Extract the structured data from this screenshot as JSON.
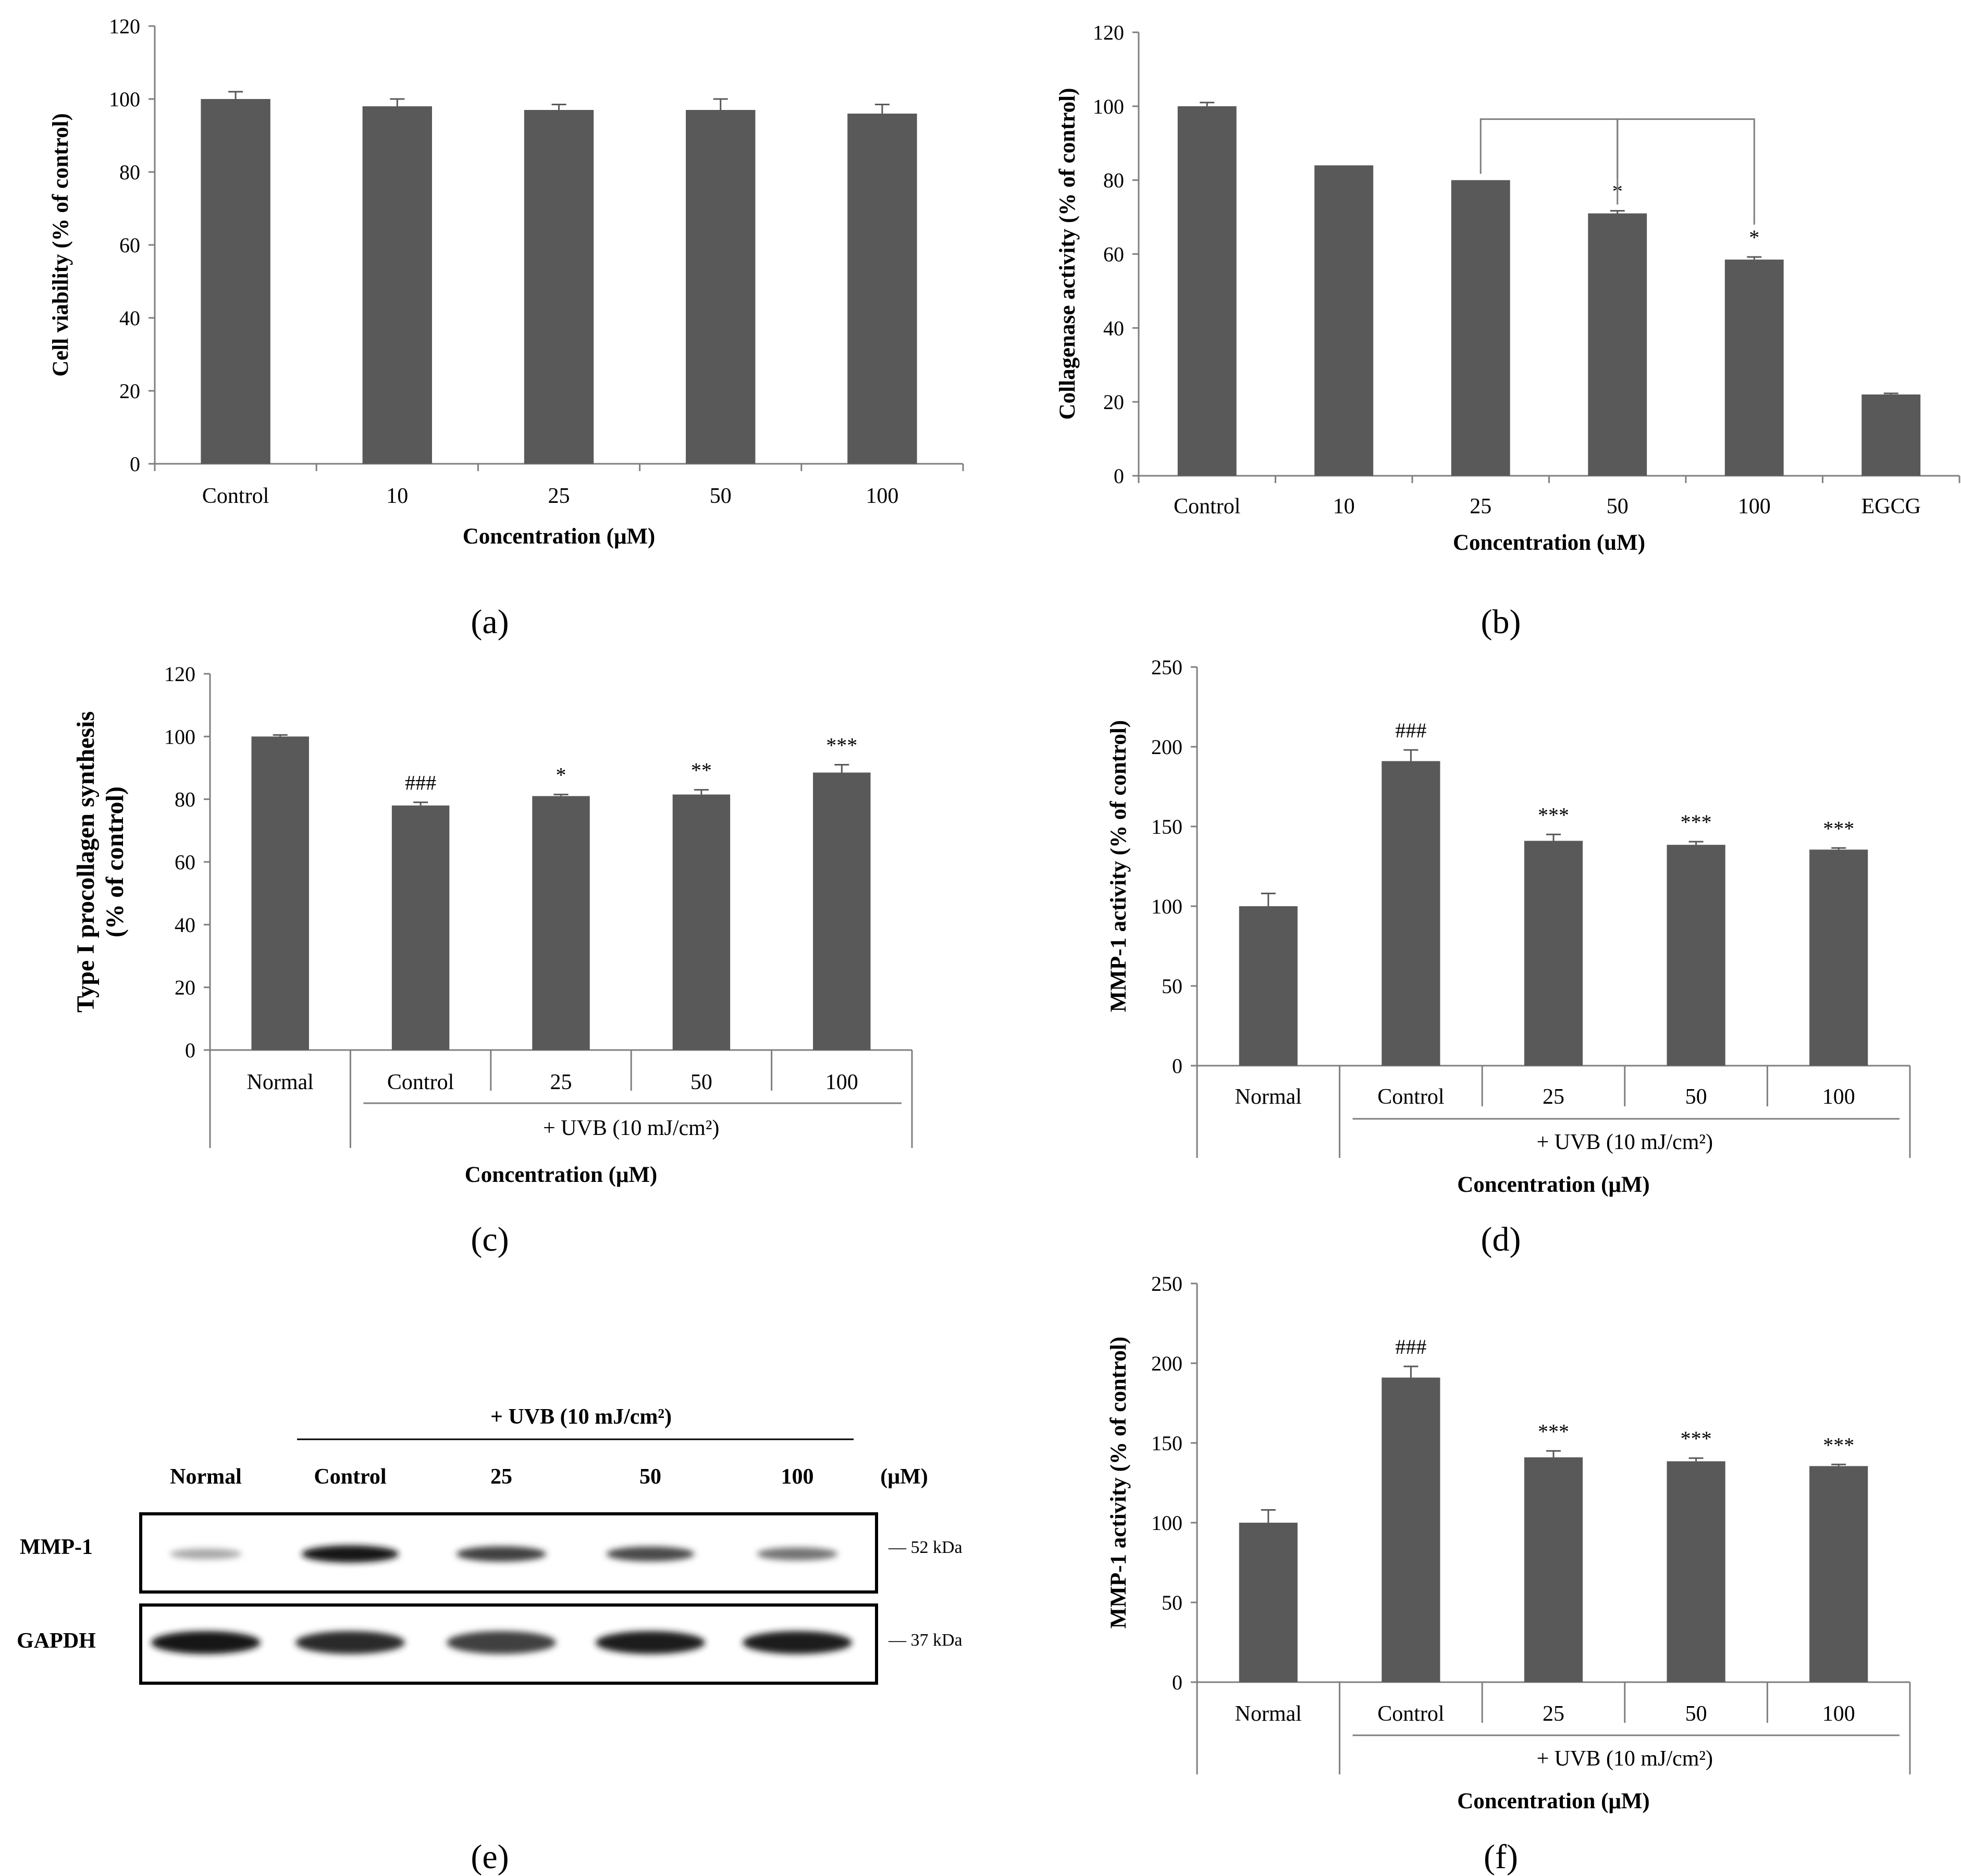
{
  "colors": {
    "bar": "#595959",
    "axis": "#7f7f7f",
    "text": "#000000"
  },
  "panels": {
    "a": {
      "label": "(a)"
    },
    "b": {
      "label": "(b)"
    },
    "c": {
      "label": "(c)"
    },
    "d": {
      "label": "(d)"
    },
    "e": {
      "label": "(e)"
    },
    "f": {
      "label": "(f)"
    }
  },
  "chart_data": [
    {
      "id": "a",
      "type": "bar",
      "categories": [
        "Control",
        "10",
        "25",
        "50",
        "100"
      ],
      "values": [
        100,
        98,
        97,
        97,
        96
      ],
      "errors": [
        2,
        2,
        1.5,
        3,
        2.5
      ],
      "significance": [
        "",
        "",
        "",
        "",
        ""
      ],
      "ylabel": "Cell viability (% of control)",
      "xlabel": "Concentration (μM)",
      "ylim": [
        0,
        120
      ],
      "yticks": [
        0,
        20,
        40,
        60,
        80,
        100,
        120
      ],
      "grid": false
    },
    {
      "id": "b",
      "type": "bar",
      "categories": [
        "Control",
        "10",
        "25",
        "50",
        "100",
        "EGCG"
      ],
      "values": [
        100,
        84,
        80,
        71,
        58.5,
        22
      ],
      "errors": [
        1,
        0,
        0,
        0.7,
        0.7,
        0.3
      ],
      "significance": [
        "",
        "",
        "",
        "*",
        "*",
        ""
      ],
      "ylabel": "Collagenase activity (% of control)",
      "xlabel": "Concentration (uM)",
      "ylim": [
        0,
        120
      ],
      "yticks": [
        0,
        20,
        40,
        60,
        80,
        100,
        120
      ],
      "grid": false,
      "brackets": [
        {
          "from": "25",
          "to": "50"
        },
        {
          "from": "50",
          "to": "100"
        }
      ]
    },
    {
      "id": "c",
      "type": "bar",
      "categories": [
        "Normal",
        "Control",
        "25",
        "50",
        "100"
      ],
      "values": [
        100,
        78,
        81,
        81.5,
        88.5
      ],
      "errors": [
        0.5,
        1,
        0.5,
        1.5,
        2.5
      ],
      "significance": [
        "",
        "###",
        "*",
        "**",
        "***"
      ],
      "ylabel_line1": "Type I procollagen synthesis",
      "ylabel_line2": "(% of control)",
      "group_label": "+ UVB (10 mJ/cm²)",
      "xlabel": "Concentration (μM)",
      "ylim": [
        0,
        120
      ],
      "yticks": [
        0,
        20,
        40,
        60,
        80,
        100,
        120
      ],
      "grid": false
    },
    {
      "id": "d",
      "type": "bar",
      "categories": [
        "Normal",
        "Control",
        "25",
        "50",
        "100"
      ],
      "values": [
        100,
        191,
        141,
        138.5,
        135.5
      ],
      "errors": [
        8,
        7,
        4,
        2,
        1
      ],
      "significance": [
        "",
        "###",
        "***",
        "***",
        "***"
      ],
      "ylabel": "MMP-1 activity (% of control)",
      "group_label": "+ UVB (10 mJ/cm²)",
      "xlabel": "Concentration (μM)",
      "ylim": [
        0,
        250
      ],
      "yticks": [
        0,
        50,
        100,
        150,
        200,
        250
      ],
      "grid": false
    },
    {
      "id": "f",
      "type": "bar",
      "categories": [
        "Normal",
        "Control",
        "25",
        "50",
        "100"
      ],
      "values": [
        100,
        191,
        141,
        138.5,
        135.5
      ],
      "errors": [
        8,
        7,
        4,
        2,
        1
      ],
      "significance": [
        "",
        "###",
        "***",
        "***",
        "***"
      ],
      "ylabel": "MMP-1 activity (% of control)",
      "group_label": "+ UVB (10 mJ/cm²)",
      "xlabel": "Concentration (μM)",
      "ylim": [
        0,
        250
      ],
      "yticks": [
        0,
        50,
        100,
        150,
        200,
        250
      ],
      "grid": false
    }
  ],
  "blot": {
    "treatment_label": "+ UVB (10 mJ/cm²)",
    "lanes": [
      "Normal",
      "Control",
      "25",
      "50",
      "100"
    ],
    "unit": "(μM)",
    "rows": [
      {
        "protein": "MMP-1",
        "kda": "— 52 kDa",
        "intensity": [
          0.25,
          0.95,
          0.75,
          0.7,
          0.5
        ]
      },
      {
        "protein": "GAPDH",
        "kda": "— 37 kDa",
        "intensity": [
          0.95,
          0.85,
          0.75,
          0.9,
          0.9
        ]
      }
    ]
  }
}
